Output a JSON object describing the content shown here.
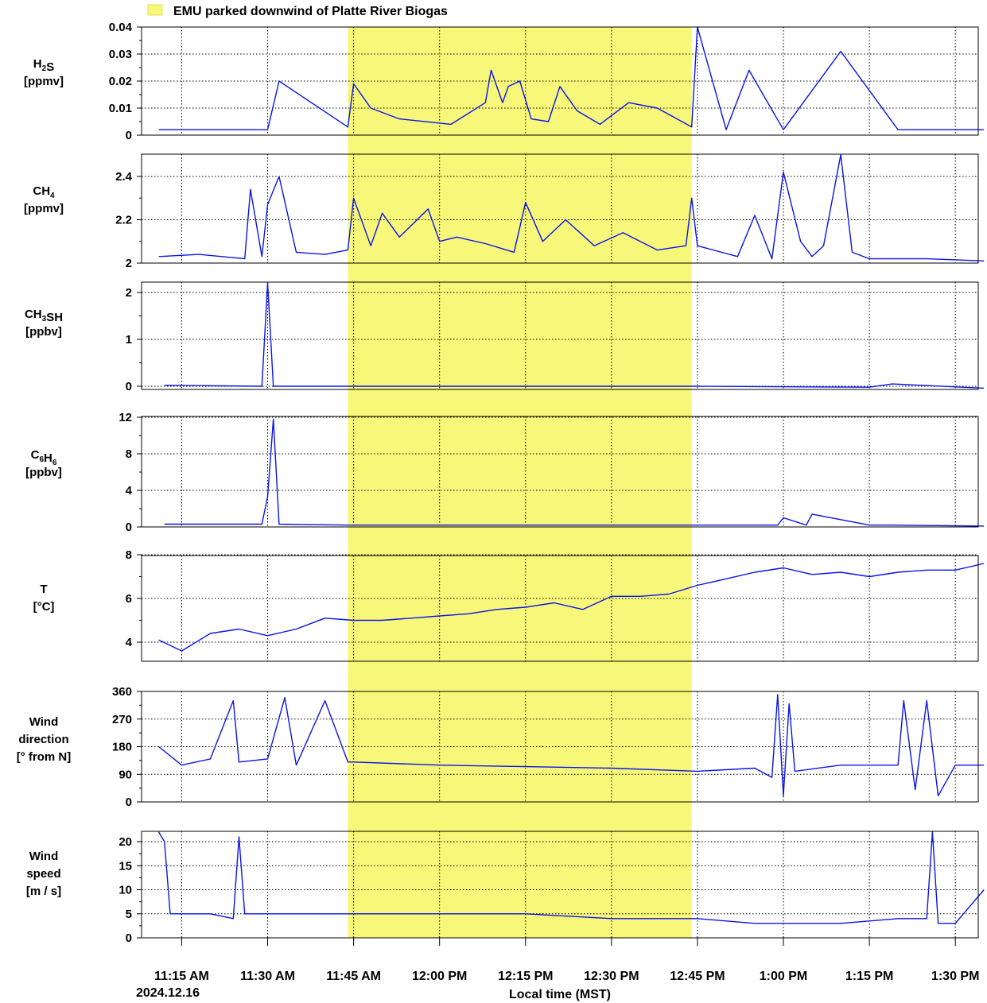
{
  "legend": {
    "label": "EMU parked downwind of Platte River Biogas",
    "color": "#f7f77a"
  },
  "x_axis": {
    "label": "Local time (MST)",
    "date_label": "2024.12.16",
    "ticks": [
      "11:15 AM",
      "11:30 AM",
      "11:45 AM",
      "12:00 PM",
      "12:15 PM",
      "12:30 PM",
      "12:45 PM",
      "1:00 PM",
      "1:15 PM",
      "1:30 PM"
    ]
  },
  "colors": {
    "series": "#0a14e6",
    "highlight": "#f7f77a"
  },
  "chart_data": [
    {
      "type": "line",
      "id": "h2s",
      "ylabel_lines": [
        "H2S",
        "[ppmv]"
      ],
      "ylim": [
        0,
        0.04
      ],
      "yticks": [
        "0",
        "0.01",
        "0.02",
        "0.03",
        "0.04"
      ],
      "series": [
        {
          "x": [
            "11:11",
            "11:30",
            "11:32",
            "11:44",
            "11:45",
            "11:48",
            "11:53",
            "12:02",
            "12:08",
            "12:09",
            "12:11",
            "12:12",
            "12:14",
            "12:16",
            "12:19",
            "12:21",
            "12:24",
            "12:28",
            "12:33",
            "12:38",
            "12:44",
            "12:45",
            "12:50",
            "12:54",
            "1:00",
            "1:10",
            "1:20",
            "1:35"
          ],
          "values": [
            0.002,
            0.002,
            0.02,
            0.003,
            0.019,
            0.01,
            0.006,
            0.004,
            0.012,
            0.024,
            0.012,
            0.018,
            0.02,
            0.006,
            0.005,
            0.018,
            0.009,
            0.004,
            0.012,
            0.01,
            0.003,
            0.04,
            0.002,
            0.024,
            0.002,
            0.031,
            0.002,
            0.002
          ]
        }
      ]
    },
    {
      "type": "line",
      "id": "ch4",
      "ylabel_lines": [
        "CH4",
        "[ppmv]"
      ],
      "ylim": [
        2.0,
        2.5
      ],
      "yticks": [
        "2",
        "2.2",
        "2.4"
      ],
      "series": [
        {
          "x": [
            "11:11",
            "11:18",
            "11:26",
            "11:27",
            "11:29",
            "11:30",
            "11:32",
            "11:35",
            "11:40",
            "11:44",
            "11:45",
            "11:48",
            "11:50",
            "11:53",
            "11:58",
            "12:00",
            "12:03",
            "12:08",
            "12:13",
            "12:15",
            "12:18",
            "12:22",
            "12:27",
            "12:32",
            "12:38",
            "12:43",
            "12:44",
            "12:45",
            "12:52",
            "12:55",
            "12:58",
            "1:00",
            "1:03",
            "1:05",
            "1:07",
            "1:10",
            "1:12",
            "1:15",
            "1:25",
            "1:35"
          ],
          "values": [
            2.03,
            2.04,
            2.02,
            2.34,
            2.03,
            2.27,
            2.4,
            2.05,
            2.04,
            2.06,
            2.3,
            2.08,
            2.23,
            2.12,
            2.25,
            2.1,
            2.12,
            2.09,
            2.05,
            2.28,
            2.1,
            2.2,
            2.08,
            2.14,
            2.06,
            2.08,
            2.3,
            2.08,
            2.03,
            2.22,
            2.02,
            2.42,
            2.1,
            2.03,
            2.08,
            2.5,
            2.05,
            2.02,
            2.02,
            2.01
          ]
        }
      ]
    },
    {
      "type": "line",
      "id": "ch3sh",
      "ylabel_lines": [
        "CH3SH",
        "[ppbv]"
      ],
      "ylim": [
        -0.4,
        2.2
      ],
      "yticks": [
        "0",
        "1",
        "2"
      ],
      "series": [
        {
          "x": [
            "11:12",
            "11:29",
            "11:30",
            "11:31",
            "11:44",
            "11:45",
            "12:14",
            "12:15",
            "12:45",
            "1:15",
            "1:19",
            "1:35"
          ],
          "values": [
            0.02,
            0.0,
            2.2,
            0.0,
            0.0,
            0.0,
            0.0,
            0.0,
            0.0,
            -0.02,
            0.05,
            -0.04
          ]
        }
      ]
    },
    {
      "type": "line",
      "id": "c6h6",
      "ylabel_lines": [
        "C6H6",
        "[ppbv]"
      ],
      "ylim": [
        0,
        12
      ],
      "yticks": [
        "0",
        "4",
        "8",
        "12"
      ],
      "series": [
        {
          "x": [
            "11:12",
            "11:29",
            "11:30",
            "11:31",
            "11:32",
            "11:44",
            "11:45",
            "12:14",
            "12:15",
            "12:45",
            "12:59",
            "1:00",
            "1:04",
            "1:05",
            "1:15",
            "1:19",
            "1:35"
          ],
          "values": [
            0.3,
            0.3,
            3.3,
            11.8,
            0.3,
            0.2,
            0.2,
            0.2,
            0.2,
            0.2,
            0.2,
            1.0,
            0.2,
            1.4,
            0.2,
            0.2,
            0.1
          ]
        }
      ]
    },
    {
      "type": "line",
      "id": "temperature",
      "ylabel_lines": [
        "T",
        "[°C]"
      ],
      "ylim": [
        3.2,
        8.0
      ],
      "yticks": [
        "4",
        "6",
        "8"
      ],
      "series": [
        {
          "x": [
            "11:11",
            "11:15",
            "11:20",
            "11:25",
            "11:30",
            "11:35",
            "11:40",
            "11:45",
            "11:50",
            "11:55",
            "12:00",
            "12:05",
            "12:10",
            "12:15",
            "12:20",
            "12:25",
            "12:30",
            "12:35",
            "12:40",
            "12:45",
            "12:50",
            "12:55",
            "1:00",
            "1:05",
            "1:10",
            "1:15",
            "1:20",
            "1:25",
            "1:30",
            "1:35"
          ],
          "values": [
            4.1,
            3.6,
            4.4,
            4.6,
            4.3,
            4.6,
            5.1,
            5.0,
            5.0,
            5.1,
            5.2,
            5.3,
            5.5,
            5.6,
            5.8,
            5.5,
            6.1,
            6.1,
            6.2,
            6.6,
            6.9,
            7.2,
            7.4,
            7.1,
            7.2,
            7.0,
            7.2,
            7.3,
            7.3,
            7.6
          ]
        }
      ]
    },
    {
      "type": "line",
      "id": "wind-direction",
      "ylabel_lines": [
        "Wind",
        "direction",
        "[° from N]"
      ],
      "ylim": [
        0,
        360
      ],
      "yticks": [
        "0",
        "90",
        "180",
        "270",
        "360"
      ],
      "series": [
        {
          "x": [
            "11:11",
            "11:15",
            "11:20",
            "11:24",
            "11:25",
            "11:30",
            "11:33",
            "11:35",
            "11:40",
            "11:44",
            "11:45",
            "12:00",
            "12:15",
            "12:30",
            "12:45",
            "12:55",
            "12:58",
            "12:59",
            "1:00",
            "1:01",
            "1:02",
            "1:10",
            "1:20",
            "1:21",
            "1:23",
            "1:25",
            "1:27",
            "1:30",
            "1:35"
          ],
          "values": [
            180,
            120,
            140,
            330,
            130,
            140,
            340,
            120,
            330,
            130,
            130,
            120,
            115,
            110,
            100,
            110,
            80,
            350,
            20,
            320,
            100,
            120,
            120,
            330,
            40,
            330,
            20,
            120,
            120
          ]
        }
      ]
    },
    {
      "type": "line",
      "id": "wind-speed",
      "ylabel_lines": [
        "Wind",
        "speed",
        "[m / s]"
      ],
      "ylim": [
        0,
        23
      ],
      "yticks": [
        "0",
        "5",
        "10",
        "15",
        "20"
      ],
      "series": [
        {
          "x": [
            "11:11",
            "11:12",
            "11:13",
            "11:20",
            "11:24",
            "11:25",
            "11:26",
            "11:35",
            "11:45",
            "12:00",
            "12:15",
            "12:30",
            "12:45",
            "12:55",
            "1:00",
            "1:10",
            "1:20",
            "1:25",
            "1:26",
            "1:27",
            "1:30",
            "1:35"
          ],
          "values": [
            22,
            20,
            5,
            5,
            4,
            21,
            5,
            5,
            5,
            5,
            5,
            4,
            4,
            3,
            3,
            3,
            4,
            4,
            22,
            3,
            3,
            10
          ]
        }
      ]
    }
  ]
}
